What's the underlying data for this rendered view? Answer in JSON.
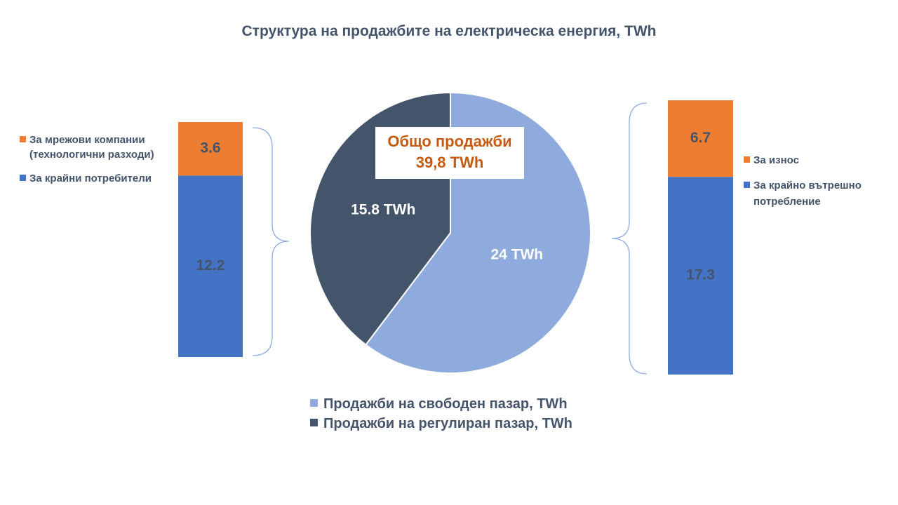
{
  "title": "Структура на продажбите на електрическа енергия, TWh",
  "total_box": {
    "line1": "Общо продажби",
    "line2": "39,8 TWh"
  },
  "left_legend": [
    {
      "label_line1": "За мрежови компании",
      "label_line2": "(технологични разходи)",
      "color": "#ed7d31"
    },
    {
      "label_line1": "За крайни потребители",
      "label_line2": "",
      "color": "#4472c4"
    }
  ],
  "right_legend": [
    {
      "label_line1": "За износ",
      "label_line2": "",
      "color": "#ed7d31"
    },
    {
      "label_line1": "За крайно вътрешно",
      "label_line2": "потребление",
      "color": "#4472c4"
    }
  ],
  "pie_legend": [
    {
      "label": "Продажби на свободен пазар, TWh",
      "color": "#8faadc"
    },
    {
      "label": "Продажби на регулиран пазар, TWh",
      "color": "#44546a"
    }
  ],
  "chart_data": [
    {
      "type": "pie",
      "title": "Структура на продажбите на електрическа енергия, TWh",
      "series": [
        {
          "name": "Продажби на свободен пазар, TWh",
          "value": 24,
          "label": "24 TWh",
          "color": "#8faadc"
        },
        {
          "name": "Продажби на регулиран пазар, TWh",
          "value": 15.8,
          "label": "15.8 TWh",
          "color": "#44546a"
        }
      ]
    },
    {
      "type": "bar",
      "stacked": true,
      "series": [
        {
          "name": "За крайни потребители",
          "value": 12.2,
          "label": "12.2",
          "color": "#4472c4"
        },
        {
          "name": "За мрежови компании (технологични разходи)",
          "value": 3.6,
          "label": "3.6",
          "color": "#ed7d31"
        }
      ],
      "total": 15.8
    },
    {
      "type": "bar",
      "stacked": true,
      "series": [
        {
          "name": "За крайно вътрешно потребление",
          "value": 17.3,
          "label": "17.3",
          "color": "#4472c4"
        },
        {
          "name": "За износ",
          "value": 6.7,
          "label": "6.7",
          "color": "#ed7d31"
        }
      ],
      "total": 24
    }
  ]
}
